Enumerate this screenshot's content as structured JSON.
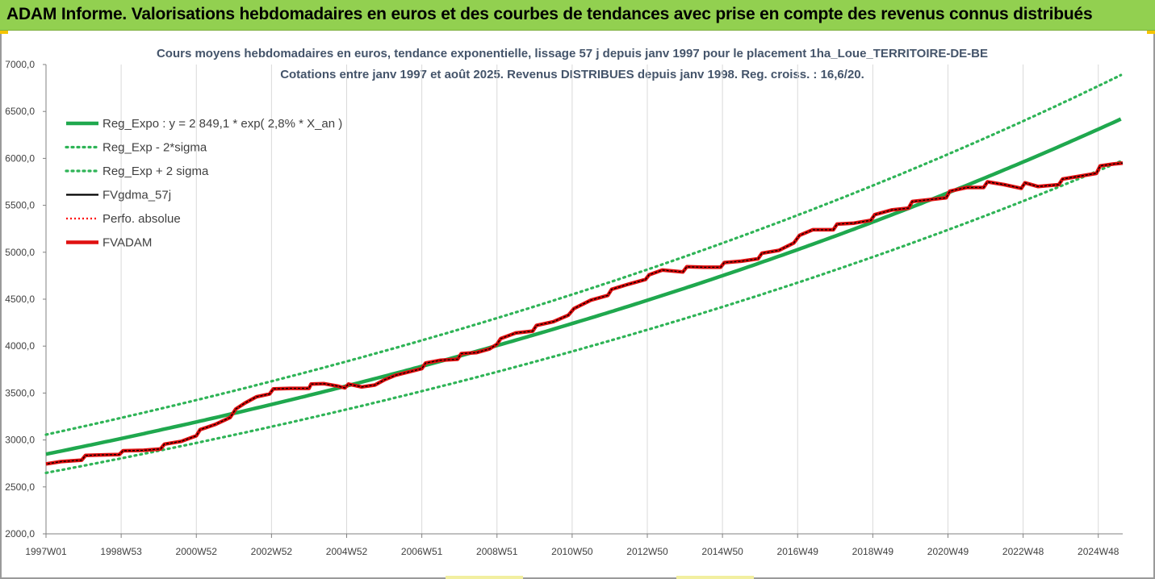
{
  "banner": {
    "title": "ADAM Informe. Valorisations hebdomadaires en euros et des courbes de tendances avec prise en compte des revenus connus distribués"
  },
  "colors": {
    "banner_bg": "#92d050",
    "trend": "#1fa84e",
    "sigma": "#2fb457",
    "fvgdma": "#000000",
    "perfo": "#ff0000",
    "fvadam": "#e01010"
  },
  "chart_data": {
    "type": "line",
    "title_line1": "Cours moyens hebdomadaires en euros, tendance exponentielle, lissage 57 j depuis janv 1997 pour le placement 1ha_Loue_TERRITOIRE-DE-BE",
    "title_line2": "Cotations entre janv 1997 et août 2025. Revenus DISTRIBUES depuis janv 1998. Reg. croiss. : 16,6/20.",
    "xlabel": "",
    "ylabel": "",
    "x_range_years": [
      1997.0,
      2025.65
    ],
    "ylim": [
      2000,
      7000
    ],
    "y_ticks": [
      "2000,0",
      "2500,0",
      "3000,0",
      "3500,0",
      "4000,0",
      "4500,0",
      "5000,0",
      "5500,0",
      "6000,0",
      "6500,0",
      "7000,0"
    ],
    "x_ticks": [
      {
        "label": "1997W01",
        "year": 1997.0
      },
      {
        "label": "1998W53",
        "year": 1999.0
      },
      {
        "label": "2000W52",
        "year": 2001.0
      },
      {
        "label": "2002W52",
        "year": 2003.0
      },
      {
        "label": "2004W52",
        "year": 2005.0
      },
      {
        "label": "2006W51",
        "year": 2007.0
      },
      {
        "label": "2008W51",
        "year": 2009.0
      },
      {
        "label": "2010W50",
        "year": 2011.0
      },
      {
        "label": "2012W50",
        "year": 2013.0
      },
      {
        "label": "2014W50",
        "year": 2015.0
      },
      {
        "label": "2016W49",
        "year": 2017.0
      },
      {
        "label": "2018W49",
        "year": 2019.0
      },
      {
        "label": "2020W49",
        "year": 2021.0
      },
      {
        "label": "2022W48",
        "year": 2023.0
      },
      {
        "label": "2024W48",
        "year": 2025.0
      }
    ],
    "grid_x": true,
    "grid_y": false,
    "legend_position": "top-left",
    "series": [
      {
        "name": "Reg_Expo : y = 2 849,1 * exp( 2,8% *  X_an )",
        "style": "solid-green",
        "formula": {
          "a": 2849.1,
          "k": 0.0284,
          "factor": 1.0
        }
      },
      {
        "name": "Reg_Exp - 2*sigma",
        "style": "dotted-green",
        "formula": {
          "a": 2849.1,
          "k": 0.0284,
          "factor": 0.93
        }
      },
      {
        "name": "Reg_Exp + 2 sigma",
        "style": "dotted-green",
        "formula": {
          "a": 2849.1,
          "k": 0.0284,
          "factor": 1.073
        }
      },
      {
        "name": "FVgdma_57j",
        "style": "solid-black"
      },
      {
        "name": "Perfo. absolue",
        "style": "dotted-red"
      },
      {
        "name": "FVADAM",
        "style": "thick-red"
      }
    ],
    "fvadam_points": [
      [
        1997.0,
        2745
      ],
      [
        1997.4,
        2770
      ],
      [
        1997.95,
        2785
      ],
      [
        1998.05,
        2835
      ],
      [
        1998.4,
        2840
      ],
      [
        1998.95,
        2845
      ],
      [
        1999.05,
        2885
      ],
      [
        1999.6,
        2890
      ],
      [
        2000.05,
        2905
      ],
      [
        2000.15,
        2955
      ],
      [
        2000.6,
        2985
      ],
      [
        2001.0,
        3045
      ],
      [
        2001.1,
        3110
      ],
      [
        2001.5,
        3165
      ],
      [
        2001.9,
        3240
      ],
      [
        2002.05,
        3330
      ],
      [
        2002.3,
        3395
      ],
      [
        2002.6,
        3460
      ],
      [
        2002.95,
        3490
      ],
      [
        2003.05,
        3545
      ],
      [
        2003.5,
        3550
      ],
      [
        2004.0,
        3550
      ],
      [
        2004.05,
        3595
      ],
      [
        2004.4,
        3600
      ],
      [
        2004.75,
        3575
      ],
      [
        2004.95,
        3555
      ],
      [
        2005.05,
        3595
      ],
      [
        2005.4,
        3565
      ],
      [
        2005.75,
        3585
      ],
      [
        2006.0,
        3640
      ],
      [
        2006.3,
        3690
      ],
      [
        2006.8,
        3740
      ],
      [
        2007.0,
        3760
      ],
      [
        2007.1,
        3820
      ],
      [
        2007.5,
        3850
      ],
      [
        2007.95,
        3860
      ],
      [
        2008.05,
        3920
      ],
      [
        2008.45,
        3930
      ],
      [
        2008.8,
        3970
      ],
      [
        2009.0,
        4020
      ],
      [
        2009.1,
        4080
      ],
      [
        2009.5,
        4140
      ],
      [
        2009.95,
        4160
      ],
      [
        2010.05,
        4220
      ],
      [
        2010.5,
        4260
      ],
      [
        2010.9,
        4330
      ],
      [
        2011.05,
        4400
      ],
      [
        2011.5,
        4490
      ],
      [
        2011.95,
        4540
      ],
      [
        2012.05,
        4605
      ],
      [
        2012.5,
        4660
      ],
      [
        2012.95,
        4710
      ],
      [
        2013.05,
        4760
      ],
      [
        2013.4,
        4810
      ],
      [
        2013.95,
        4790
      ],
      [
        2014.05,
        4845
      ],
      [
        2014.5,
        4840
      ],
      [
        2014.95,
        4840
      ],
      [
        2015.05,
        4890
      ],
      [
        2015.5,
        4905
      ],
      [
        2015.95,
        4930
      ],
      [
        2016.05,
        4990
      ],
      [
        2016.5,
        5020
      ],
      [
        2016.9,
        5100
      ],
      [
        2017.05,
        5180
      ],
      [
        2017.4,
        5240
      ],
      [
        2017.95,
        5240
      ],
      [
        2018.05,
        5300
      ],
      [
        2018.5,
        5310
      ],
      [
        2018.95,
        5340
      ],
      [
        2019.05,
        5400
      ],
      [
        2019.5,
        5450
      ],
      [
        2019.95,
        5470
      ],
      [
        2020.05,
        5540
      ],
      [
        2020.5,
        5560
      ],
      [
        2020.95,
        5580
      ],
      [
        2021.05,
        5650
      ],
      [
        2021.5,
        5690
      ],
      [
        2021.95,
        5690
      ],
      [
        2022.05,
        5750
      ],
      [
        2022.5,
        5720
      ],
      [
        2022.95,
        5680
      ],
      [
        2023.05,
        5740
      ],
      [
        2023.4,
        5700
      ],
      [
        2023.95,
        5720
      ],
      [
        2024.05,
        5780
      ],
      [
        2024.5,
        5810
      ],
      [
        2024.95,
        5840
      ],
      [
        2025.05,
        5920
      ],
      [
        2025.4,
        5940
      ],
      [
        2025.65,
        5950
      ]
    ]
  }
}
